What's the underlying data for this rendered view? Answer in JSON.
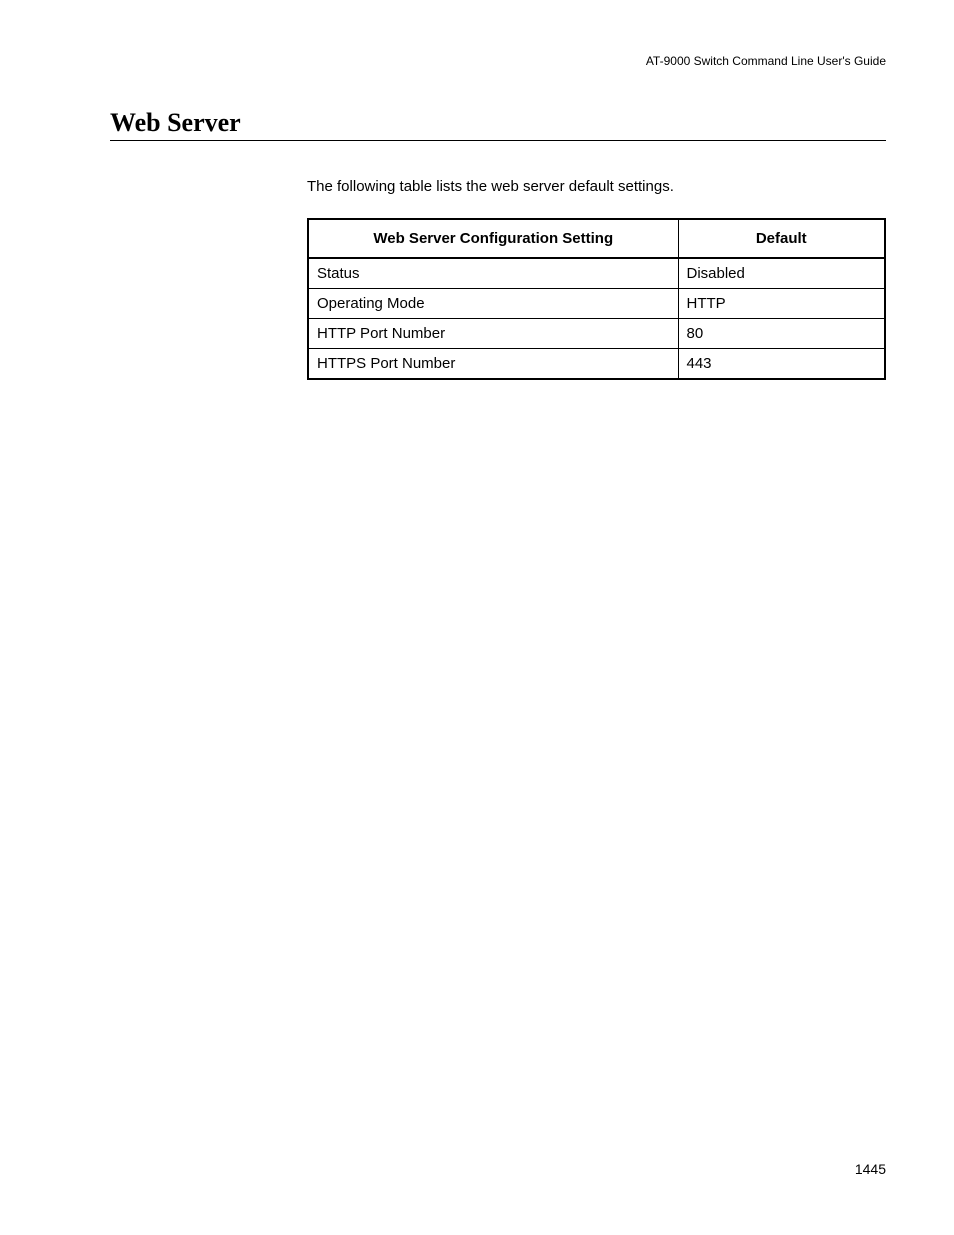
{
  "header": {
    "guide_title": "AT-9000 Switch Command Line User's Guide"
  },
  "section": {
    "heading": "Web Server",
    "intro": "The following table lists the web server default settings."
  },
  "table": {
    "columns": [
      "Web Server Configuration Setting",
      "Default"
    ],
    "rows": [
      [
        "Status",
        "Disabled"
      ],
      [
        "Operating Mode",
        "HTTP"
      ],
      [
        "HTTP Port Number",
        "80"
      ],
      [
        "HTTPS Port Number",
        "443"
      ]
    ]
  },
  "footer": {
    "page_number": "1445"
  }
}
